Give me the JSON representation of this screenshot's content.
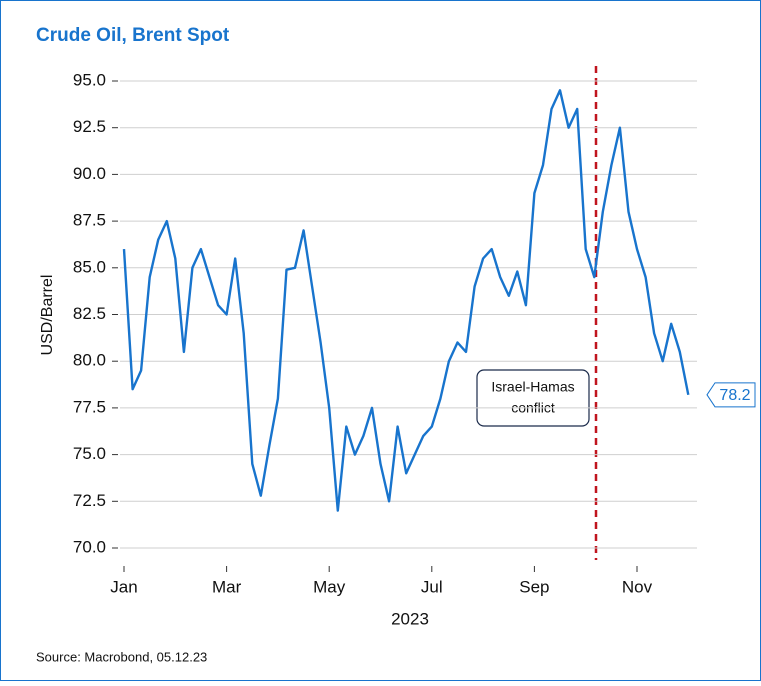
{
  "chart_data": {
    "type": "line",
    "title": "Crude Oil, Brent Spot",
    "ylabel": "USD/Barrel",
    "xlabel": "2023",
    "source": "Source: Macrobond, 05.12.23",
    "annotation": [
      "Israel-Hamas",
      "conflict"
    ],
    "categories": [
      "Jan",
      null,
      null,
      null,
      null,
      null,
      null,
      null,
      null,
      null,
      null,
      null,
      "Mar",
      null,
      null,
      null,
      null,
      null,
      null,
      null,
      null,
      null,
      null,
      null,
      "May",
      null,
      null,
      null,
      null,
      null,
      null,
      null,
      null,
      null,
      null,
      null,
      "Jul",
      null,
      null,
      null,
      null,
      null,
      null,
      null,
      null,
      null,
      null,
      null,
      "Sep",
      null,
      null,
      null,
      null,
      null,
      null,
      null,
      null,
      null,
      null,
      null,
      "Nov",
      null,
      null,
      null,
      null,
      null,
      null
    ],
    "series": [
      {
        "name": "Brent",
        "color": "#1874cd",
        "values": [
          86.0,
          78.5,
          79.5,
          84.5,
          86.5,
          87.5,
          85.5,
          80.5,
          85.0,
          86.0,
          84.5,
          83.0,
          82.5,
          85.5,
          81.5,
          74.5,
          72.8,
          75.5,
          78.0,
          84.9,
          85.0,
          87.0,
          84.0,
          81.0,
          77.5,
          72.0,
          76.5,
          75.0,
          76.0,
          77.5,
          74.5,
          72.5,
          76.5,
          74.0,
          75.0,
          76.0,
          76.5,
          78.0,
          80.0,
          81.0,
          80.5,
          84.0,
          85.5,
          86.0,
          84.5,
          83.5,
          84.8,
          83.0,
          89.0,
          90.5,
          93.5,
          94.5,
          92.5,
          93.5,
          86.0,
          84.5,
          88.0,
          90.5,
          92.5,
          88.0,
          86.0,
          84.5,
          81.5,
          80.0,
          82.0,
          80.5,
          78.2
        ]
      }
    ],
    "ylim": [
      70,
      95
    ],
    "yticks": [
      {
        "value": 70,
        "label": "70.0"
      },
      {
        "value": 72.5,
        "label": "72.5"
      },
      {
        "value": 75,
        "label": "75.0"
      },
      {
        "value": 77.5,
        "label": "77.5"
      },
      {
        "value": 80,
        "label": "80.0"
      },
      {
        "value": 82.5,
        "label": "82.5"
      },
      {
        "value": 85,
        "label": "85.0"
      },
      {
        "value": 87.5,
        "label": "87.5"
      },
      {
        "value": 90,
        "label": "90.0"
      },
      {
        "value": 92.5,
        "label": "92.5"
      },
      {
        "value": 95,
        "label": "95.0"
      }
    ],
    "grid": true
  }
}
